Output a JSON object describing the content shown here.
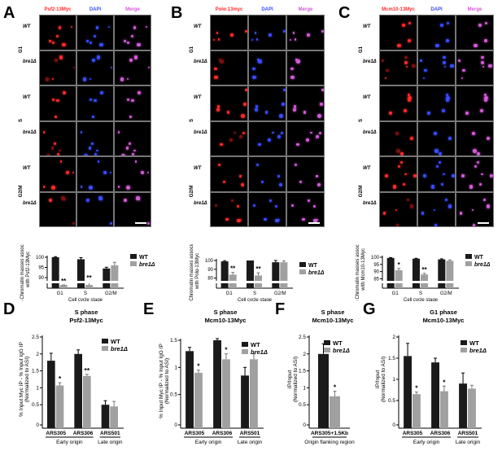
{
  "panels": {
    "A": {
      "letter": "A",
      "channels": [
        "Psf2-13Myc",
        "DAPI",
        "Merge"
      ],
      "phase_labels": [
        "G1",
        "S",
        "G2/M"
      ],
      "row_labels": [
        "WT",
        "bre1Δ",
        "WT",
        "bre1Δ",
        "WT",
        "bre1Δ"
      ],
      "protein_color": "#ff2a2a"
    },
    "B": {
      "letter": "B",
      "channels": [
        "Polα-13myc",
        "DAPI",
        "Merge"
      ],
      "phase_labels": [
        "G1",
        "S",
        "G2/M"
      ],
      "row_labels": [
        "WT",
        "bre1Δ",
        "WT",
        "bre1Δ",
        "WT",
        "bre1Δ"
      ],
      "protein_color": "#ff2a2a"
    },
    "C": {
      "letter": "C",
      "channels": [
        "Mcm10-13Myc",
        "DAPI",
        "Merge"
      ],
      "phase_labels": [
        "G1",
        "S",
        "G2/M"
      ],
      "row_labels": [
        "WT",
        "bre1Δ",
        "WT",
        "bre1Δ",
        "WT",
        "bre1Δ"
      ],
      "protein_color": "#ff2a2a"
    },
    "D": {
      "letter": "D"
    },
    "E": {
      "letter": "E"
    },
    "F": {
      "letter": "F"
    },
    "G": {
      "letter": "G"
    }
  },
  "legend": {
    "wt": "WT",
    "mut": "bre1Δ"
  },
  "colors": {
    "wt": "#1a1a1a",
    "mut": "#a0a0a0",
    "dapi": "#3a4cff",
    "merge": "#d35ad8"
  },
  "chart_data": [
    {
      "id": "A-bar",
      "type": "bar",
      "ylabel_lines": [
        "% Chromatin masses associated",
        "with Psf2-13Myc"
      ],
      "xlabel": "Cell cycle stage",
      "categories": [
        "G1",
        "S",
        "G2/M"
      ],
      "ticks": [
        90,
        95,
        100
      ],
      "ylim": [
        0,
        100
      ],
      "series": [
        {
          "name": "WT",
          "values": [
            100,
            99,
            94.5
          ],
          "errors": [
            0.3,
            0.8,
            0.6
          ]
        },
        {
          "name": "bre1Δ",
          "values": [
            84,
            87.5,
            96
          ],
          "errors": [
            1.5,
            0.6,
            1.5
          ]
        }
      ],
      "annotations": [
        "**",
        "**",
        ""
      ]
    },
    {
      "id": "B-bar",
      "type": "bar",
      "ylabel_lines": [
        "% Chromatin masses associated",
        "with Polα-13Myc"
      ],
      "xlabel": "Cell cycle stage",
      "categories": [
        "G1",
        "S",
        "G2/M"
      ],
      "ticks": [
        80,
        90,
        100
      ],
      "ylim": [
        0,
        100
      ],
      "series": [
        {
          "name": "WT",
          "values": [
            99,
            100,
            98
          ],
          "errors": [
            0.8,
            0,
            2
          ]
        },
        {
          "name": "bre1Δ",
          "values": [
            84,
            83,
            98
          ],
          "errors": [
            2.5,
            3,
            1.5
          ]
        }
      ],
      "annotations": [
        "**",
        "**",
        ""
      ]
    },
    {
      "id": "C-bar",
      "type": "bar",
      "ylabel_lines": [
        "% Chromatin masses associated",
        "with Mcm10-13Myc"
      ],
      "xlabel": "Cell cycle stage",
      "categories": [
        "G1",
        "S",
        "G2/M"
      ],
      "ticks": [
        85,
        90,
        95,
        100
      ],
      "ylim": [
        0,
        100
      ],
      "series": [
        {
          "name": "WT",
          "values": [
            99.5,
            99,
            98.5
          ],
          "errors": [
            0.3,
            0.3,
            0.4
          ]
        },
        {
          "name": "bre1Δ",
          "values": [
            91,
            88,
            97.5
          ],
          "errors": [
            1.2,
            0.8,
            0.6
          ]
        }
      ],
      "annotations": [
        "*",
        "**",
        ""
      ]
    },
    {
      "id": "D-bar",
      "type": "bar",
      "title_lines": [
        "S phase",
        "Psf2-13Myc"
      ],
      "ylabel_lines": [
        "% Input Myc IP - % Input IgG IP",
        "(Normalized to ASI)"
      ],
      "categories": [
        "ARS305",
        "ARS306",
        "ARS501"
      ],
      "groups": [
        {
          "label": "Early origin",
          "span": [
            0,
            1
          ]
        },
        {
          "label": "Late origin",
          "span": [
            2,
            2
          ]
        }
      ],
      "ticks": [
        0.0,
        0.5,
        1.0,
        1.5,
        2.0,
        2.5
      ],
      "ylim": [
        0,
        2.5
      ],
      "series": [
        {
          "name": "WT",
          "values": [
            1.8,
            2.0,
            0.5
          ],
          "errors": [
            0.22,
            0.12,
            0.12
          ]
        },
        {
          "name": "bre1Δ",
          "values": [
            1.07,
            1.35,
            0.45
          ],
          "errors": [
            0.08,
            0.05,
            0.15
          ]
        }
      ],
      "annotations": [
        "*",
        "**",
        ""
      ]
    },
    {
      "id": "E-bar",
      "type": "bar",
      "title_lines": [
        "S phase",
        "Mcm10-13Myc"
      ],
      "ylabel_lines": [
        "% Input Myc IP - % Input IgG IP",
        "(Normalized to ASI)"
      ],
      "categories": [
        "ARS305",
        "ARS306",
        "ARS501"
      ],
      "groups": [
        {
          "label": "Early origin",
          "span": [
            0,
            1
          ]
        },
        {
          "label": "Late origin",
          "span": [
            2,
            2
          ]
        }
      ],
      "ticks": [
        0.0,
        0.5,
        1.0,
        1.5
      ],
      "ylim": [
        0,
        1.5
      ],
      "series": [
        {
          "name": "WT",
          "values": [
            1.3,
            1.5,
            0.85
          ],
          "errors": [
            0.07,
            0.03,
            0.15
          ]
        },
        {
          "name": "bre1Δ",
          "values": [
            0.9,
            1.15,
            1.15
          ],
          "errors": [
            0.05,
            0.1,
            0.1
          ]
        }
      ],
      "annotations": [
        "*",
        "*",
        ""
      ]
    },
    {
      "id": "F-bar",
      "type": "bar",
      "title_lines": [
        "S phase",
        "Mcm10-13Myc"
      ],
      "ylabel_lines": [
        "IP/Input",
        "(Normalized to ASI)"
      ],
      "categories": [
        "ARS305+1.5Kb"
      ],
      "groups": [
        {
          "label": "Origin flanking region",
          "span": [
            0,
            0
          ]
        }
      ],
      "ticks": [
        0.0,
        0.5,
        1.0,
        1.5,
        2.0,
        2.5
      ],
      "ylim": [
        0,
        2.5
      ],
      "series": [
        {
          "name": "WT",
          "values": [
            2.0
          ],
          "errors": [
            0.3
          ]
        },
        {
          "name": "bre1Δ",
          "values": [
            0.75
          ],
          "errors": [
            0.15
          ]
        }
      ],
      "annotations": [
        "*"
      ]
    },
    {
      "id": "G-bar",
      "type": "bar",
      "title_lines": [
        "G1 phase",
        "Mcm10-13Myc"
      ],
      "ylabel_lines": [
        "IP/Input",
        "(Normalized to ASI)"
      ],
      "categories": [
        "ARS305",
        "ARS306",
        "ARS501"
      ],
      "groups": [
        {
          "label": "Early origin",
          "span": [
            0,
            1
          ]
        },
        {
          "label": "Late origin",
          "span": [
            2,
            2
          ]
        }
      ],
      "ticks": [
        0.0,
        0.5,
        1.0,
        1.5,
        2.0
      ],
      "ylim": [
        0,
        2.0
      ],
      "series": [
        {
          "name": "WT",
          "values": [
            1.55,
            1.4,
            0.9
          ],
          "errors": [
            0.3,
            0.1,
            0.25
          ]
        },
        {
          "name": "bre1Δ",
          "values": [
            0.65,
            0.72,
            0.78
          ],
          "errors": [
            0.05,
            0.12,
            0.08
          ]
        }
      ],
      "annotations": [
        "*",
        "*",
        ""
      ]
    }
  ]
}
